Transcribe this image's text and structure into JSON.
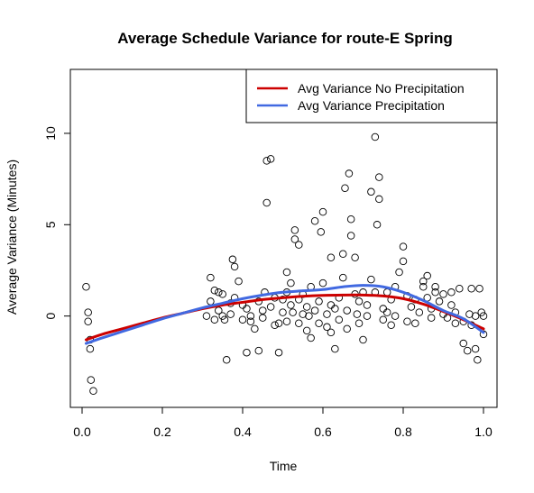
{
  "colors": {
    "no_precip": "#CC0000",
    "precip": "#4169E1",
    "points": "#000000",
    "axis": "#000000"
  },
  "chart_data": {
    "type": "scatter",
    "title": "Average Schedule Variance for route-E Spring",
    "xlabel": "Time",
    "ylabel": "Average Variance (Minutes)",
    "xlim": [
      0,
      1
    ],
    "ylim": [
      -5,
      13.5
    ],
    "x_ticks": [
      0.0,
      0.2,
      0.4,
      0.6,
      0.8,
      1.0
    ],
    "x_tick_labels": [
      "0.0",
      "0.2",
      "0.4",
      "0.6",
      "0.8",
      "1.0"
    ],
    "y_ticks": [
      0,
      5,
      10
    ],
    "y_tick_labels": [
      "0",
      "5",
      "10"
    ],
    "grid": false,
    "legend_position": "top-right",
    "legend": [
      {
        "label": "Avg Variance No Precipitation",
        "series": "no_precip"
      },
      {
        "label": "Avg Variance Precipitation",
        "series": "precip"
      }
    ],
    "series": [
      {
        "name": "Avg Variance No Precipitation",
        "kind": "line",
        "color": "#CC0000",
        "x": [
          0.01,
          0.05,
          0.1,
          0.15,
          0.2,
          0.25,
          0.3,
          0.35,
          0.4,
          0.45,
          0.5,
          0.55,
          0.6,
          0.65,
          0.7,
          0.75,
          0.8,
          0.85,
          0.9,
          0.95,
          1.0
        ],
        "y": [
          -1.3,
          -1.0,
          -0.7,
          -0.4,
          -0.1,
          0.15,
          0.4,
          0.6,
          0.75,
          0.9,
          1.0,
          1.08,
          1.13,
          1.15,
          1.15,
          1.1,
          0.95,
          0.65,
          0.25,
          -0.2,
          -0.7
        ]
      },
      {
        "name": "Avg Variance Precipitation",
        "kind": "line",
        "color": "#4169E1",
        "x": [
          0.01,
          0.05,
          0.1,
          0.15,
          0.2,
          0.25,
          0.3,
          0.35,
          0.4,
          0.45,
          0.5,
          0.55,
          0.6,
          0.65,
          0.7,
          0.75,
          0.8,
          0.85,
          0.9,
          0.95,
          1.0
        ],
        "y": [
          -1.5,
          -1.2,
          -0.85,
          -0.5,
          -0.15,
          0.15,
          0.45,
          0.7,
          0.95,
          1.15,
          1.3,
          1.38,
          1.45,
          1.6,
          1.68,
          1.6,
          1.3,
          0.85,
          0.3,
          -0.15,
          -0.9
        ]
      },
      {
        "kind": "scatter",
        "color": "#000000",
        "points": [
          [
            0.01,
            1.6
          ],
          [
            0.015,
            0.2
          ],
          [
            0.015,
            -0.3
          ],
          [
            0.02,
            -1.3
          ],
          [
            0.02,
            -1.8
          ],
          [
            0.022,
            -3.5
          ],
          [
            0.028,
            -4.1
          ],
          [
            0.31,
            0.0
          ],
          [
            0.32,
            2.1
          ],
          [
            0.32,
            0.8
          ],
          [
            0.33,
            1.4
          ],
          [
            0.33,
            -0.2
          ],
          [
            0.34,
            0.3
          ],
          [
            0.34,
            1.3
          ],
          [
            0.35,
            0.0
          ],
          [
            0.35,
            1.2
          ],
          [
            0.355,
            -0.2
          ],
          [
            0.36,
            -2.4
          ],
          [
            0.37,
            0.7
          ],
          [
            0.37,
            0.1
          ],
          [
            0.375,
            3.1
          ],
          [
            0.38,
            2.7
          ],
          [
            0.38,
            1.0
          ],
          [
            0.39,
            1.9
          ],
          [
            0.4,
            -0.2
          ],
          [
            0.4,
            0.6
          ],
          [
            0.41,
            0.4
          ],
          [
            0.41,
            -2.0
          ],
          [
            0.42,
            0.0
          ],
          [
            0.42,
            -0.3
          ],
          [
            0.43,
            -0.7
          ],
          [
            0.44,
            0.8
          ],
          [
            0.44,
            -1.9
          ],
          [
            0.45,
            0.3
          ],
          [
            0.45,
            -0.1
          ],
          [
            0.455,
            1.3
          ],
          [
            0.46,
            6.2
          ],
          [
            0.46,
            8.5
          ],
          [
            0.47,
            8.6
          ],
          [
            0.47,
            0.5
          ],
          [
            0.48,
            1.0
          ],
          [
            0.48,
            -0.5
          ],
          [
            0.49,
            -0.4
          ],
          [
            0.49,
            -2.0
          ],
          [
            0.5,
            0.9
          ],
          [
            0.5,
            0.2
          ],
          [
            0.51,
            2.4
          ],
          [
            0.51,
            1.3
          ],
          [
            0.51,
            -0.3
          ],
          [
            0.52,
            0.6
          ],
          [
            0.52,
            1.8
          ],
          [
            0.525,
            0.2
          ],
          [
            0.53,
            4.2
          ],
          [
            0.53,
            4.7
          ],
          [
            0.54,
            3.9
          ],
          [
            0.54,
            0.9
          ],
          [
            0.54,
            -0.4
          ],
          [
            0.55,
            1.2
          ],
          [
            0.55,
            0.1
          ],
          [
            0.56,
            0.5
          ],
          [
            0.56,
            -0.8
          ],
          [
            0.565,
            0.0
          ],
          [
            0.57,
            1.6
          ],
          [
            0.57,
            -1.2
          ],
          [
            0.58,
            0.3
          ],
          [
            0.58,
            5.2
          ],
          [
            0.59,
            0.8
          ],
          [
            0.59,
            -0.4
          ],
          [
            0.595,
            4.6
          ],
          [
            0.6,
            5.7
          ],
          [
            0.6,
            1.8
          ],
          [
            0.61,
            0.1
          ],
          [
            0.61,
            -0.6
          ],
          [
            0.62,
            0.6
          ],
          [
            0.62,
            3.2
          ],
          [
            0.62,
            -0.9
          ],
          [
            0.63,
            -1.8
          ],
          [
            0.63,
            0.4
          ],
          [
            0.64,
            1.0
          ],
          [
            0.64,
            -0.2
          ],
          [
            0.65,
            3.4
          ],
          [
            0.65,
            2.1
          ],
          [
            0.655,
            7.0
          ],
          [
            0.66,
            0.3
          ],
          [
            0.66,
            -0.7
          ],
          [
            0.665,
            7.8
          ],
          [
            0.67,
            4.4
          ],
          [
            0.67,
            5.3
          ],
          [
            0.68,
            3.2
          ],
          [
            0.68,
            1.2
          ],
          [
            0.685,
            0.1
          ],
          [
            0.69,
            0.8
          ],
          [
            0.69,
            -0.4
          ],
          [
            0.7,
            1.3
          ],
          [
            0.7,
            -1.3
          ],
          [
            0.71,
            0.0
          ],
          [
            0.71,
            0.6
          ],
          [
            0.72,
            2.0
          ],
          [
            0.72,
            6.8
          ],
          [
            0.73,
            9.8
          ],
          [
            0.73,
            1.3
          ],
          [
            0.735,
            5.0
          ],
          [
            0.74,
            6.4
          ],
          [
            0.74,
            7.6
          ],
          [
            0.75,
            0.4
          ],
          [
            0.75,
            -0.2
          ],
          [
            0.76,
            1.3
          ],
          [
            0.76,
            0.2
          ],
          [
            0.77,
            -0.5
          ],
          [
            0.77,
            0.9
          ],
          [
            0.78,
            0.0
          ],
          [
            0.78,
            1.6
          ],
          [
            0.79,
            2.4
          ],
          [
            0.8,
            3.8
          ],
          [
            0.8,
            3.0
          ],
          [
            0.81,
            1.1
          ],
          [
            0.81,
            -0.3
          ],
          [
            0.82,
            0.5
          ],
          [
            0.83,
            0.9
          ],
          [
            0.83,
            -0.4
          ],
          [
            0.84,
            0.2
          ],
          [
            0.85,
            1.6
          ],
          [
            0.85,
            1.9
          ],
          [
            0.86,
            2.2
          ],
          [
            0.86,
            1.0
          ],
          [
            0.87,
            0.4
          ],
          [
            0.87,
            -0.1
          ],
          [
            0.88,
            1.3
          ],
          [
            0.88,
            1.6
          ],
          [
            0.89,
            0.8
          ],
          [
            0.9,
            0.1
          ],
          [
            0.9,
            1.2
          ],
          [
            0.91,
            -0.1
          ],
          [
            0.92,
            1.3
          ],
          [
            0.92,
            0.6
          ],
          [
            0.93,
            0.2
          ],
          [
            0.93,
            -0.4
          ],
          [
            0.94,
            1.5
          ],
          [
            0.95,
            -0.3
          ],
          [
            0.95,
            -1.5
          ],
          [
            0.96,
            -1.9
          ],
          [
            0.965,
            0.1
          ],
          [
            0.97,
            1.5
          ],
          [
            0.97,
            -0.5
          ],
          [
            0.98,
            0.0
          ],
          [
            0.98,
            -1.8
          ],
          [
            0.985,
            -2.4
          ],
          [
            0.99,
            1.5
          ],
          [
            0.995,
            0.2
          ],
          [
            1.0,
            -1.0
          ],
          [
            1.0,
            0.0
          ]
        ]
      }
    ]
  }
}
